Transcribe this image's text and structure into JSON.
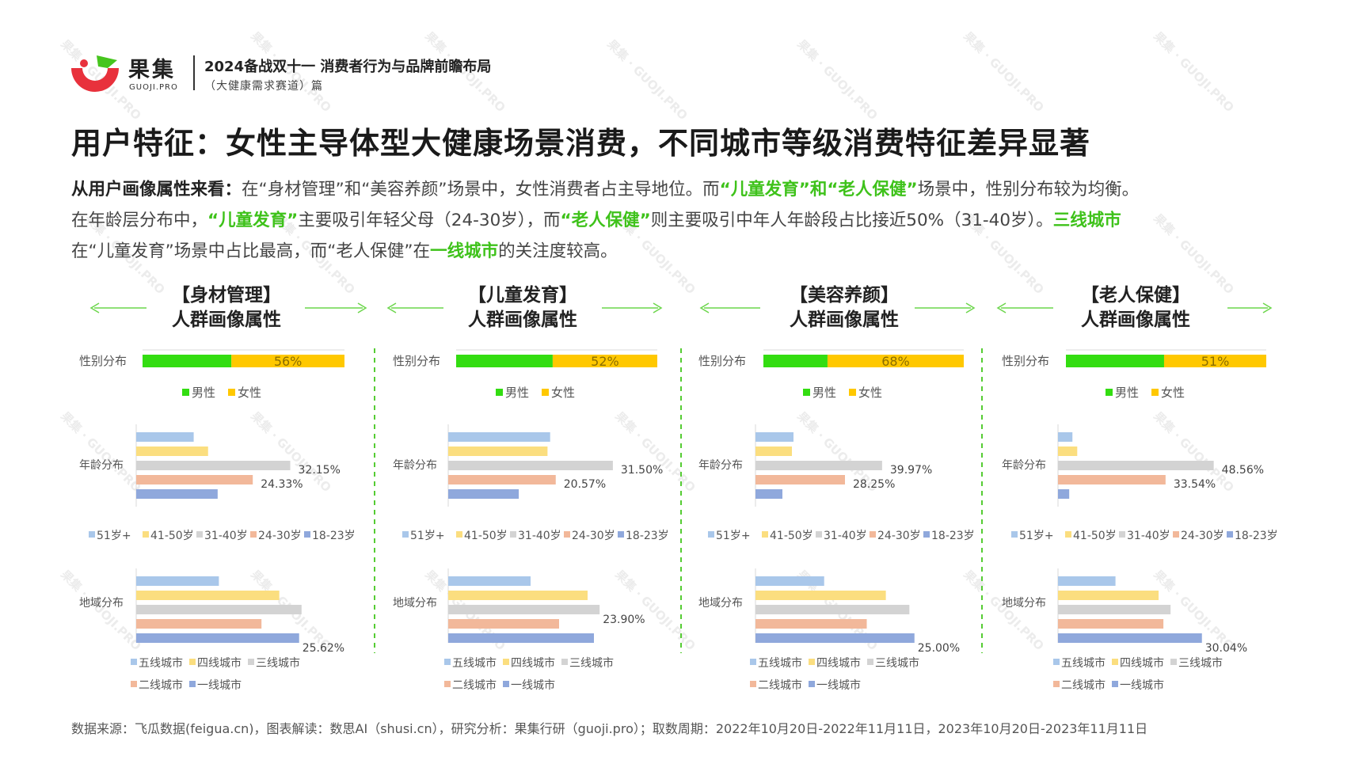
{
  "header": {
    "logo_cn": "果集",
    "logo_en": "GUOJI.PRO",
    "title": "2024备战双十一 消费者行为与品牌前瞻布局",
    "subtitle": "（大健康需求赛道）篇"
  },
  "watermark": {
    "text": "果集 · GUOJI.PRO"
  },
  "main_title": "用户特征：女性主导体型大健康场景消费，不同城市等级消费特征差异显著",
  "description": {
    "p1_lead": "从用户画像属性来看：",
    "p1_text": "在“身材管理”和“美容养颜”场景中，女性消费者占主导地位。而",
    "p1_hl": "“儿童发育”和“老人保健”",
    "p1_tail": "场景中，性别分布较为均衡。",
    "p2_text": "在年龄层分布中，",
    "p2_hl1": "“儿童发育”",
    "p2_mid": "主要吸引年轻父母（24-30岁），而",
    "p2_hl2": "“老人保健”",
    "p2_tail": "则主要吸引中年人年龄段占比接近50%（31-40岁）。",
    "p2_hl3": "三线城市",
    "p3_text": "在“儿童发育”场景中占比最高，而“老人保健”在",
    "p3_hl": "一线城市",
    "p3_tail": "的关注度较高。"
  },
  "colors": {
    "accent_green": "#3ec21a",
    "male": "#33dd11",
    "female": "#ffc800",
    "age_51": "#a9c7ea",
    "age_41": "#fbde7f",
    "age_31": "#d3d3d3",
    "age_24": "#f2b89a",
    "age_18": "#8fa8dc",
    "arrow": "#6cd64c",
    "divider": "#55cc33"
  },
  "row_labels": {
    "gender": "性别分布",
    "age": "年龄分布",
    "region": "地域分布"
  },
  "legends": {
    "gender": [
      "男性",
      "女性"
    ],
    "age": [
      "51岁+",
      "41-50岁",
      "31-40岁",
      "24-30岁",
      "18-23岁"
    ],
    "region": [
      "五线城市",
      "四线城市",
      "三线城市",
      "二线城市",
      "一线城市"
    ]
  },
  "panels": [
    {
      "title_line1": "【身材管理】",
      "title_line2": "人群画像属性"
    },
    {
      "title_line1": "【儿童发育】",
      "title_line2": "人群画像属性"
    },
    {
      "title_line1": "【美容养颜】",
      "title_line2": "人群画像属性"
    },
    {
      "title_line1": "【老人保健】",
      "title_line2": "人群画像属性"
    }
  ],
  "chart_data": [
    {
      "type": "bar",
      "title": "【身材管理】人群画像属性",
      "gender": {
        "categories": [
          "男性",
          "女性"
        ],
        "values": [
          44,
          56
        ],
        "labels": [
          "",
          "56%"
        ]
      },
      "age": {
        "categories": [
          "51岁+",
          "41-50岁",
          "31-40岁",
          "24-30岁",
          "18-23岁"
        ],
        "values": [
          12,
          15,
          32.15,
          24.33,
          17
        ],
        "labels": [
          "",
          "",
          "32.15%",
          "24.33%",
          ""
        ]
      },
      "region": {
        "categories": [
          "五线城市",
          "四线城市",
          "三线城市",
          "二线城市",
          "一线城市"
        ],
        "values": [
          13,
          22.5,
          26,
          19.7,
          25.62
        ],
        "labels": [
          "",
          "",
          "",
          "",
          "25.62%"
        ]
      }
    },
    {
      "type": "bar",
      "title": "【儿童发育】人群画像属性",
      "gender": {
        "categories": [
          "男性",
          "女性"
        ],
        "values": [
          48,
          52
        ],
        "labels": [
          "",
          "52%"
        ]
      },
      "age": {
        "categories": [
          "51岁+",
          "41-50岁",
          "31-40岁",
          "24-30岁",
          "18-23岁"
        ],
        "values": [
          19.5,
          19,
          31.5,
          20.57,
          13.5
        ],
        "labels": [
          "",
          "",
          "31.50%",
          "20.57%",
          ""
        ]
      },
      "region": {
        "categories": [
          "五线城市",
          "四线城市",
          "三线城市",
          "二线城市",
          "一线城市"
        ],
        "values": [
          13,
          22,
          23.9,
          17.5,
          23
        ],
        "labels": [
          "",
          "",
          "23.90%",
          "",
          ""
        ]
      }
    },
    {
      "type": "bar",
      "title": "【美容养颜】人群画像属性",
      "gender": {
        "categories": [
          "男性",
          "女性"
        ],
        "values": [
          32,
          68
        ],
        "labels": [
          "",
          "68%"
        ]
      },
      "age": {
        "categories": [
          "51岁+",
          "41-50岁",
          "31-40岁",
          "24-30岁",
          "18-23岁"
        ],
        "values": [
          12,
          11.5,
          39.97,
          28.25,
          8.5
        ],
        "labels": [
          "",
          "",
          "39.97%",
          "28.25%",
          ""
        ]
      },
      "region": {
        "categories": [
          "五线城市",
          "四线城市",
          "三线城市",
          "二线城市",
          "一线城市"
        ],
        "values": [
          10.8,
          20.5,
          24.2,
          17.5,
          25.0
        ],
        "labels": [
          "",
          "",
          "",
          "",
          "25.00%"
        ]
      }
    },
    {
      "type": "bar",
      "title": "【老人保健】人群画像属性",
      "gender": {
        "categories": [
          "男性",
          "女性"
        ],
        "values": [
          49,
          51
        ],
        "labels": [
          "",
          "51%"
        ]
      },
      "age": {
        "categories": [
          "51岁+",
          "41-50岁",
          "31-40岁",
          "24-30岁",
          "18-23岁"
        ],
        "values": [
          4.5,
          6,
          48.56,
          33.54,
          3.5
        ],
        "labels": [
          "",
          "",
          "48.56%",
          "33.54%",
          ""
        ]
      },
      "region": {
        "categories": [
          "五线城市",
          "四线城市",
          "三线城市",
          "二线城市",
          "一线城市"
        ],
        "values": [
          12,
          21,
          23.5,
          22,
          30.04
        ],
        "labels": [
          "",
          "",
          "",
          "",
          "30.04%"
        ]
      }
    }
  ],
  "footer": "数据来源：飞瓜数据(feigua.cn)，图表解读：数思AI（shusi.cn），研究分析：果集行研（guoji.pro）；取数周期：2022年10月20日-2022年11月11日，2023年10月20日-2023年11月11日"
}
